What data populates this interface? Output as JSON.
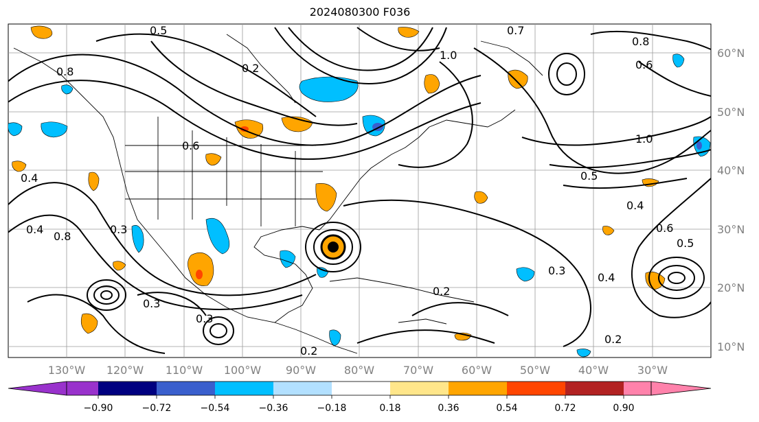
{
  "title": "2024080300 F036",
  "map": {
    "lon_labels": [
      "130°W",
      "120°W",
      "110°W",
      "100°W",
      "90°W",
      "80°W",
      "70°W",
      "60°W",
      "50°W",
      "40°W",
      "30°W"
    ],
    "lat_labels": [
      "60°N",
      "50°N",
      "40°N",
      "30°N",
      "20°N",
      "10°N"
    ],
    "contour_labels": [
      "0.5",
      "0.2",
      "1.0",
      "0.7",
      "0.8",
      "0.6",
      "0.4",
      "0.3",
      "0.5",
      "1.0",
      "0.2",
      "0.8",
      "0.4",
      "0.6",
      "0.3",
      "0.5",
      "0.4",
      "0.3",
      "0.6",
      "0.8",
      "0.3",
      "0.4",
      "0.2",
      "0.2"
    ],
    "label_color": "#808080",
    "storm_marker": "hurricane-symbol"
  },
  "colorbar": {
    "ticks": [
      "−0.90",
      "−0.72",
      "−0.54",
      "−0.36",
      "−0.18",
      "0.18",
      "0.36",
      "0.54",
      "0.72",
      "0.90"
    ],
    "colors": [
      "#9932cc",
      "#000080",
      "#3a5fcd",
      "#00bfff",
      "#b2e0ff",
      "#ffffff",
      "#ffe68a",
      "#ffa500",
      "#ff4500",
      "#b22222",
      "#ff82ab"
    ]
  }
}
